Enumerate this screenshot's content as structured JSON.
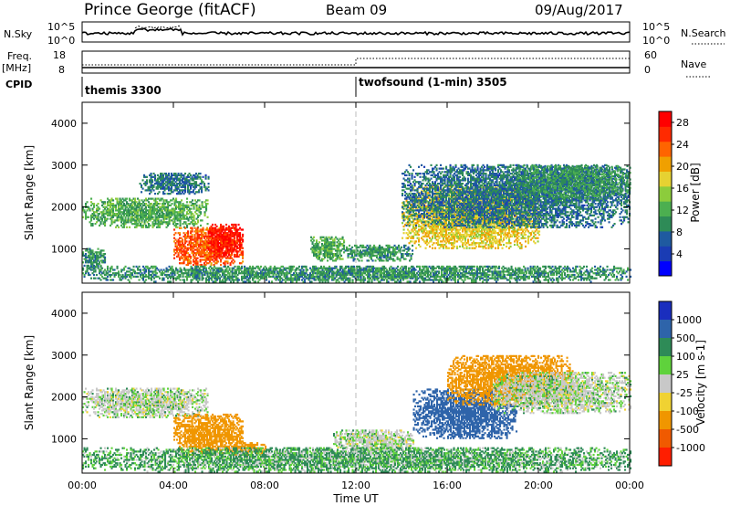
{
  "header": {
    "station": "Prince George (fitACF)",
    "beam": "Beam 09",
    "date": "09/Aug/2017"
  },
  "strip_labels": {
    "nsky": "N.Sky",
    "nsky_ticks": [
      "10^5",
      "10^0"
    ],
    "nsearch": "N.Search",
    "nsearch_ticks": [
      "10^5",
      "10^0"
    ],
    "freq": "Freq.",
    "freq_unit": "[MHz]",
    "freq_ticks": [
      "18",
      "8"
    ],
    "nave": "Nave",
    "nave_ticks": [
      "60",
      "0"
    ],
    "cpid": "CPID",
    "cpid_programs": [
      {
        "label": "themis 3300",
        "start_hour": 0
      },
      {
        "label": "twofsound (1-min) 3505",
        "start_hour": 12
      }
    ]
  },
  "colors": {
    "power": [
      "#0000ff",
      "#1a3cb4",
      "#1f5aa0",
      "#2e8b57",
      "#4caf50",
      "#8ccc3c",
      "#e6d232",
      "#f0a000",
      "#ff6400",
      "#ff2a00",
      "#ff0000"
    ],
    "velocity": [
      "#1a2ebe",
      "#2e64aa",
      "#2e8b57",
      "#5fd23c",
      "#c8c8c8",
      "#f0d232",
      "#f09600",
      "#f05a00",
      "#ff1e00"
    ],
    "gray": "#c8c8c8"
  },
  "chart_data": [
    {
      "type": "heatmap",
      "title": "Power",
      "xlabel": "",
      "ylabel": "Slant Range [km]",
      "x_ticks": [
        "00:00",
        "04:00",
        "08:00",
        "12:00",
        "16:00",
        "20:00",
        "00:00"
      ],
      "xlim": [
        0,
        24
      ],
      "y_ticks": [
        1000,
        2000,
        3000,
        4000
      ],
      "ylim": [
        180,
        4500
      ],
      "colorbar_label": "Power [dB]",
      "colorbar_ticks": [
        "4",
        "8",
        "12",
        "16",
        "20",
        "24",
        "28"
      ],
      "colorbar_range": [
        0,
        30
      ],
      "regions": [
        {
          "t0": 0,
          "t1": 5.5,
          "r0": 1500,
          "r1": 2200,
          "value": 12
        },
        {
          "t0": 2.5,
          "t1": 5.5,
          "r0": 2300,
          "r1": 2800,
          "value": 8
        },
        {
          "t0": 4,
          "t1": 7,
          "r0": 600,
          "r1": 1500,
          "value": 24
        },
        {
          "t0": 5.5,
          "t1": 7,
          "r0": 800,
          "r1": 1600,
          "value": 28
        },
        {
          "t0": 0,
          "t1": 1,
          "r0": 500,
          "r1": 1000,
          "value": 10
        },
        {
          "t0": 10,
          "t1": 11.5,
          "r0": 700,
          "r1": 1300,
          "value": 12
        },
        {
          "t0": 11.5,
          "t1": 14.5,
          "r0": 700,
          "r1": 1100,
          "value": 10
        },
        {
          "t0": 14,
          "t1": 20,
          "r0": 1000,
          "r1": 2500,
          "value": 18
        },
        {
          "t0": 14,
          "t1": 24,
          "r0": 1500,
          "r1": 3000,
          "value": 8
        },
        {
          "t0": 19,
          "t1": 24,
          "r0": 2200,
          "r1": 3000,
          "value": 10
        },
        {
          "t0": 0,
          "t1": 24,
          "r0": 200,
          "r1": 600,
          "value": 10
        }
      ]
    },
    {
      "type": "heatmap",
      "title": "Velocity",
      "xlabel": "Time UT",
      "ylabel": "Slant Range [km]",
      "x_ticks": [
        "00:00",
        "04:00",
        "08:00",
        "12:00",
        "16:00",
        "20:00",
        "00:00"
      ],
      "xlim": [
        0,
        24
      ],
      "y_ticks": [
        1000,
        2000,
        3000,
        4000
      ],
      "ylim": [
        180,
        4500
      ],
      "colorbar_label": "Velocity [m s-1]",
      "colorbar_ticks": [
        "1000",
        "500",
        "100",
        "25",
        "-25",
        "-100",
        "-500",
        "-1000"
      ],
      "regions": [
        {
          "t0": 0,
          "t1": 5.5,
          "r0": 1500,
          "r1": 2200,
          "value": 0
        },
        {
          "t0": 4,
          "t1": 7,
          "r0": 600,
          "r1": 1600,
          "value": -200
        },
        {
          "t0": 6.5,
          "t1": 8,
          "r0": 600,
          "r1": 900,
          "value": -150
        },
        {
          "t0": 11,
          "t1": 14.5,
          "r0": 700,
          "r1": 1200,
          "value": 0
        },
        {
          "t0": 14.5,
          "t1": 19,
          "r0": 1000,
          "r1": 2200,
          "value": 150
        },
        {
          "t0": 16,
          "t1": 21.5,
          "r0": 1800,
          "r1": 3000,
          "value": -200
        },
        {
          "t0": 18,
          "t1": 24,
          "r0": 1600,
          "r1": 2600,
          "value": 0
        },
        {
          "t0": 0,
          "t1": 24,
          "r0": 200,
          "r1": 800,
          "value": 30
        }
      ]
    }
  ]
}
